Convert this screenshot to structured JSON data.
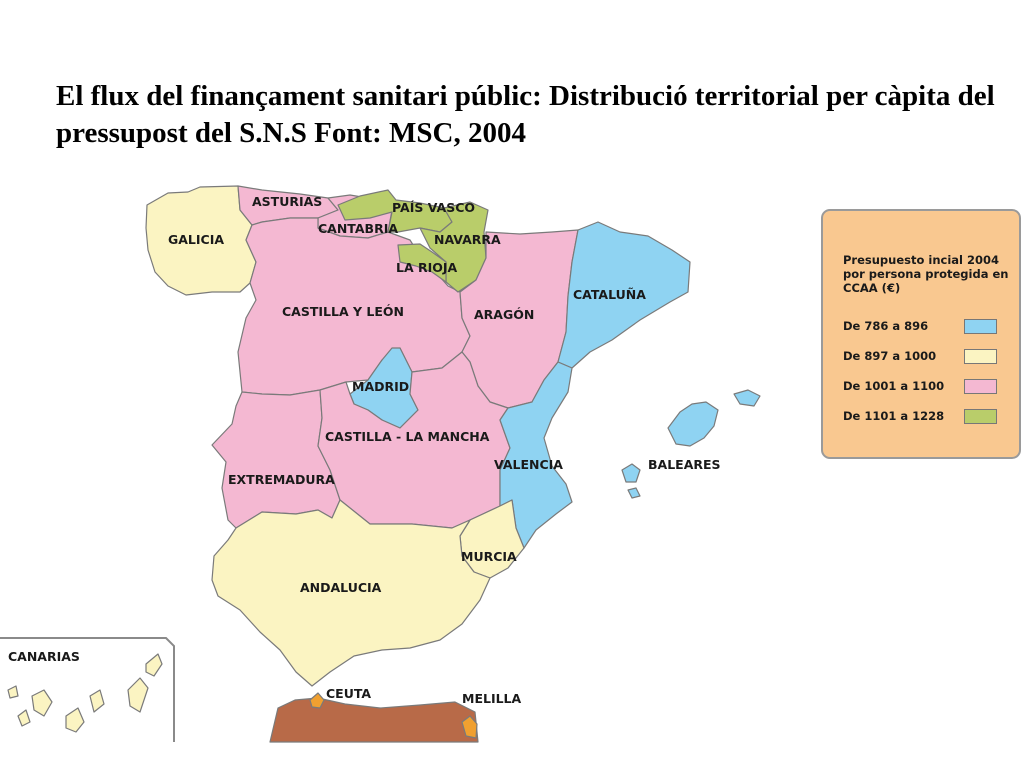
{
  "title": "El flux del finançament sanitari públic: Distribució territorial per càpita del pressupost del S.N.S Font: MSC, 2004",
  "legend": {
    "title": "Presupuesto incial 2004 por persona protegida en CCAA (€)",
    "items": [
      {
        "label": "De 786 a 896",
        "color": "#8fd3f2"
      },
      {
        "label": "De 897 a 1000",
        "color": "#fbf4c2"
      },
      {
        "label": "De 1001 a 1100",
        "color": "#f4b8d2"
      },
      {
        "label": "De 1101 a 1228",
        "color": "#b9cd6a"
      }
    ]
  },
  "regions": {
    "galicia": "GALICIA",
    "asturias": "ASTURIAS",
    "cantabria": "CANTABRIA",
    "pais_vasco": "PAÍS VASCO",
    "navarra": "NAVARRA",
    "la_rioja": "LA RIOJA",
    "cataluna": "CATALUÑA",
    "castilla_leon": "CASTILLA Y LEÓN",
    "aragon": "ARAGÓN",
    "madrid": "MADRID",
    "castilla_mancha": "CASTILLA - LA MANCHA",
    "extremadura": "EXTREMADURA",
    "valencia": "VALENCIA",
    "baleares": "BALEARES",
    "murcia": "MURCIA",
    "andalucia": "ANDALUCIA",
    "canarias": "CANARIAS",
    "ceuta": "CEUTA",
    "melilla": "MELILLA"
  },
  "colors": {
    "blue": "#8fd3f2",
    "yellow": "#fbf4c2",
    "pink": "#f4b8d2",
    "green": "#b9cd6a",
    "africa": "#b86a48",
    "enclave": "#f0a030"
  }
}
